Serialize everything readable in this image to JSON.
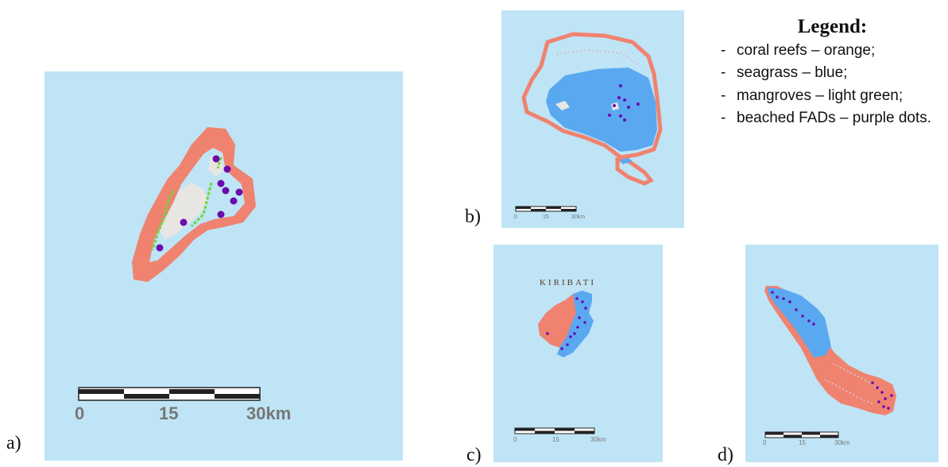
{
  "legend": {
    "title": "Legend:",
    "items": [
      "coral reefs – orange;",
      "seagrass – blue;",
      "mangroves – light green;",
      "beached FADs – purple dots."
    ]
  },
  "colors": {
    "ocean": "#bfe4f5",
    "coral_reef": "#f08270",
    "seagrass": "#5aa8f0",
    "mangroves": "#6fd63a",
    "fad": "#6a0dad",
    "land": "#e8e6e2"
  },
  "panels": [
    {
      "label": "a)",
      "scale": {
        "ticks": [
          "0",
          "15",
          "30km"
        ]
      }
    },
    {
      "label": "b)",
      "scale": {
        "ticks": [
          "0",
          "15",
          "30km"
        ]
      }
    },
    {
      "label": "c)",
      "scale": {
        "ticks": [
          "0",
          "15",
          "30km"
        ]
      },
      "place_label": "KIRIBATI"
    },
    {
      "label": "d)",
      "scale": {
        "ticks": [
          "0",
          "15",
          "30km"
        ]
      }
    }
  ]
}
